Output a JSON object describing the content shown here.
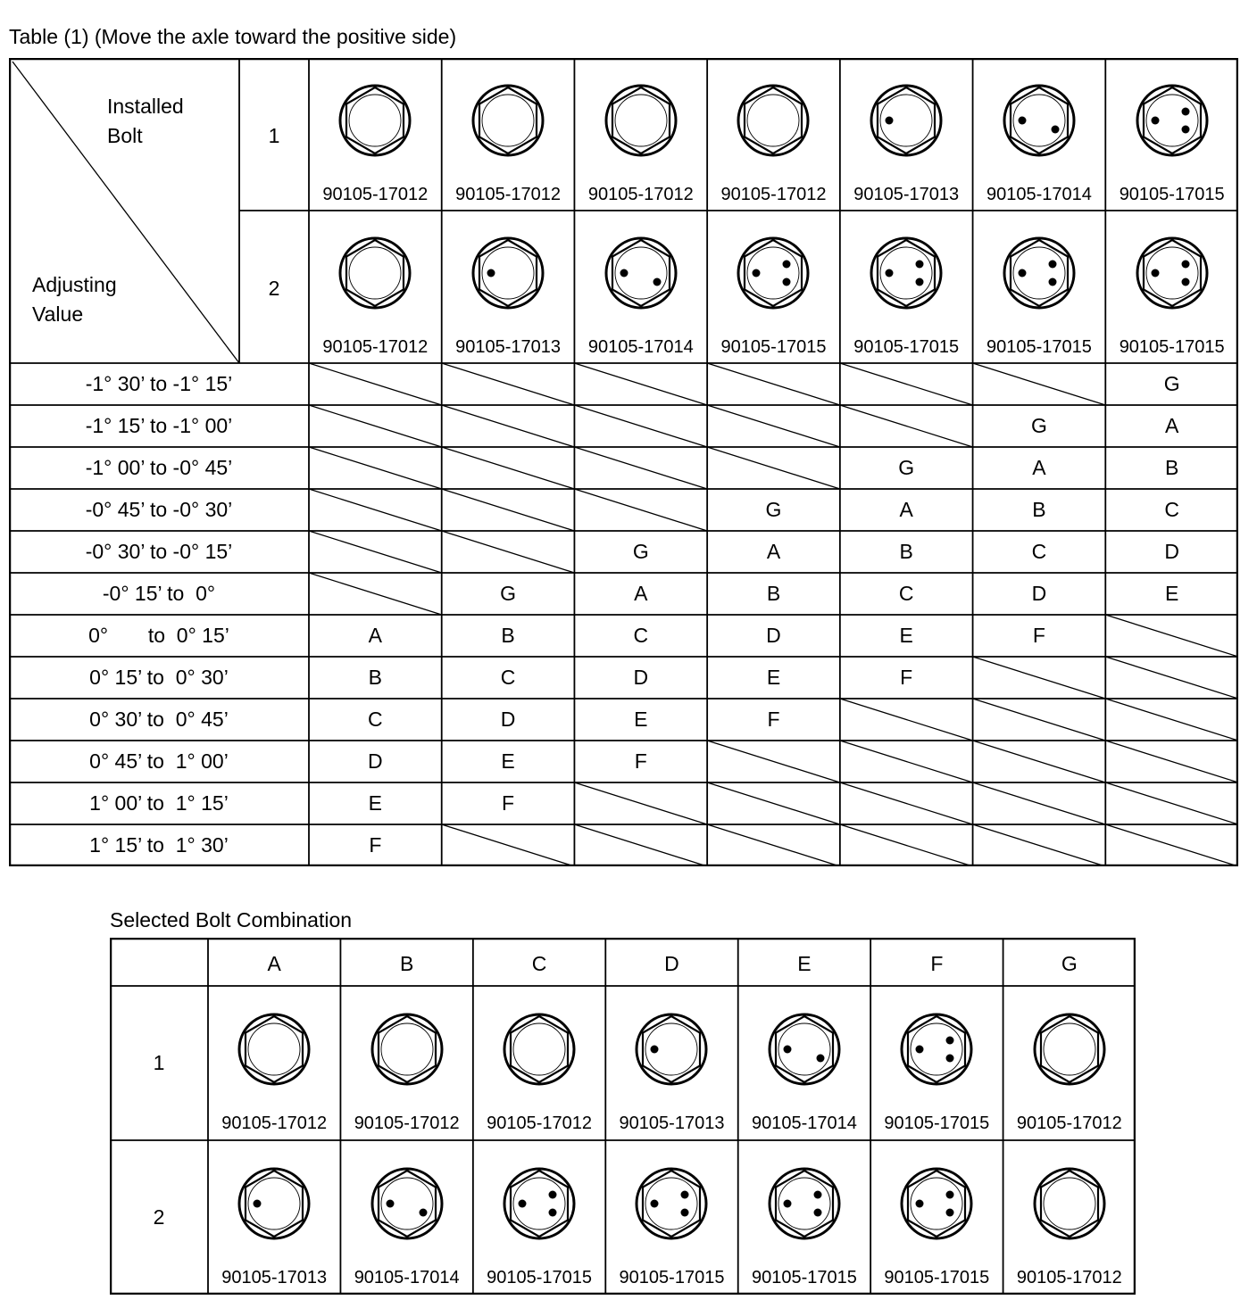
{
  "table1": {
    "title": "Table (1) (Move the axle toward the positive side)",
    "corner_top": [
      "Installed",
      "Bolt"
    ],
    "corner_bottom": [
      "Adjusting",
      "Value"
    ],
    "bolt_rows": [
      {
        "label": "1",
        "parts": [
          "90105-17012",
          "90105-17012",
          "90105-17012",
          "90105-17012",
          "90105-17013",
          "90105-17014",
          "90105-17015"
        ]
      },
      {
        "label": "2",
        "parts": [
          "90105-17012",
          "90105-17013",
          "90105-17014",
          "90105-17015",
          "90105-17015",
          "90105-17015",
          "90105-17015"
        ]
      }
    ],
    "rows": [
      {
        "range": "-1° 30’ to -1° 15’",
        "values": [
          "",
          "",
          "",
          "",
          "",
          "",
          "G"
        ]
      },
      {
        "range": "-1° 15’ to -1° 00’",
        "values": [
          "",
          "",
          "",
          "",
          "",
          "G",
          "A"
        ]
      },
      {
        "range": "-1° 00’ to -0° 45’",
        "values": [
          "",
          "",
          "",
          "",
          "G",
          "A",
          "B"
        ]
      },
      {
        "range": "-0° 45’ to -0° 30’",
        "values": [
          "",
          "",
          "",
          "G",
          "A",
          "B",
          "C"
        ]
      },
      {
        "range": "-0° 30’ to -0° 15’",
        "values": [
          "",
          "",
          "G",
          "A",
          "B",
          "C",
          "D"
        ]
      },
      {
        "range": "-0° 15’ to  0°",
        "values": [
          "",
          "G",
          "A",
          "B",
          "C",
          "D",
          "E"
        ]
      },
      {
        "range": "0°       to  0° 15’",
        "values": [
          "A",
          "B",
          "C",
          "D",
          "E",
          "F",
          ""
        ]
      },
      {
        "range": "0° 15’ to  0° 30’",
        "values": [
          "B",
          "C",
          "D",
          "E",
          "F",
          "",
          ""
        ]
      },
      {
        "range": "0° 30’ to  0° 45’",
        "values": [
          "C",
          "D",
          "E",
          "F",
          "",
          "",
          ""
        ]
      },
      {
        "range": "0° 45’ to  1° 00’",
        "values": [
          "D",
          "E",
          "F",
          "",
          "",
          "",
          ""
        ]
      },
      {
        "range": "1° 00’ to  1° 15’",
        "values": [
          "E",
          "F",
          "",
          "",
          "",
          "",
          ""
        ]
      },
      {
        "range": "1° 15’ to  1° 30’",
        "values": [
          "F",
          "",
          "",
          "",
          "",
          "",
          ""
        ]
      }
    ]
  },
  "table2": {
    "title": "Selected Bolt Combination",
    "columns": [
      "A",
      "B",
      "C",
      "D",
      "E",
      "F",
      "G"
    ],
    "bolt_rows": [
      {
        "label": "1",
        "parts": [
          "90105-17012",
          "90105-17012",
          "90105-17012",
          "90105-17013",
          "90105-17014",
          "90105-17015",
          "90105-17012"
        ]
      },
      {
        "label": "2",
        "parts": [
          "90105-17013",
          "90105-17014",
          "90105-17015",
          "90105-17015",
          "90105-17015",
          "90105-17015",
          "90105-17012"
        ]
      }
    ]
  },
  "bolt_marks": {
    "90105-17012": 0,
    "90105-17013": 1,
    "90105-17014": 2,
    "90105-17015": 3
  },
  "line_color": "#000000"
}
